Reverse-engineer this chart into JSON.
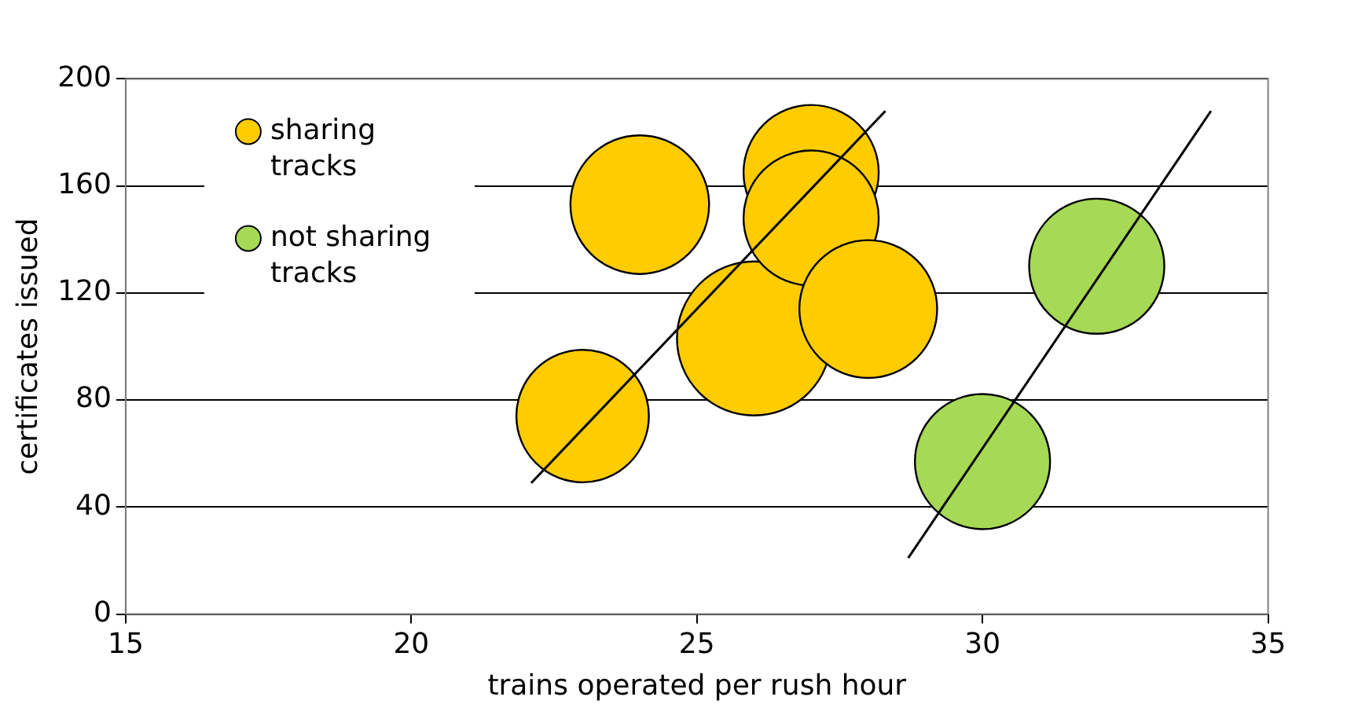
{
  "chart_data": {
    "type": "bubble",
    "xlabel": "trains operated per rush hour",
    "ylabel": "certificates issued",
    "xlim": [
      15,
      35
    ],
    "xticks": [
      15,
      20,
      25,
      30,
      35
    ],
    "ylim": [
      0,
      200
    ],
    "yticks": [
      0,
      40,
      80,
      120,
      160,
      200
    ],
    "grid": "y",
    "legend": "top left",
    "series": [
      {
        "name": "sharing tracks",
        "color": "#ffcc00",
        "x": [
          23,
          24,
          26,
          27,
          27,
          28
        ],
        "values": [
          74,
          153,
          103,
          165,
          148,
          114
        ],
        "sizes": [
          0.74,
          0.81,
          1,
          0.77,
          0.77,
          0.8
        ]
      },
      {
        "name": "not sharing tracks",
        "color": "#a6d955",
        "x": [
          30,
          32
        ],
        "values": [
          57,
          130
        ],
        "sizes": [
          0.77,
          0.77
        ]
      },
      {
        "type": "line",
        "color": "#000000",
        "x": [
          22.1,
          28.3
        ],
        "values": [
          49,
          188
        ]
      },
      {
        "type": "line",
        "color": "#000000",
        "x": [
          28.7,
          34
        ],
        "values": [
          21,
          188
        ]
      }
    ]
  }
}
